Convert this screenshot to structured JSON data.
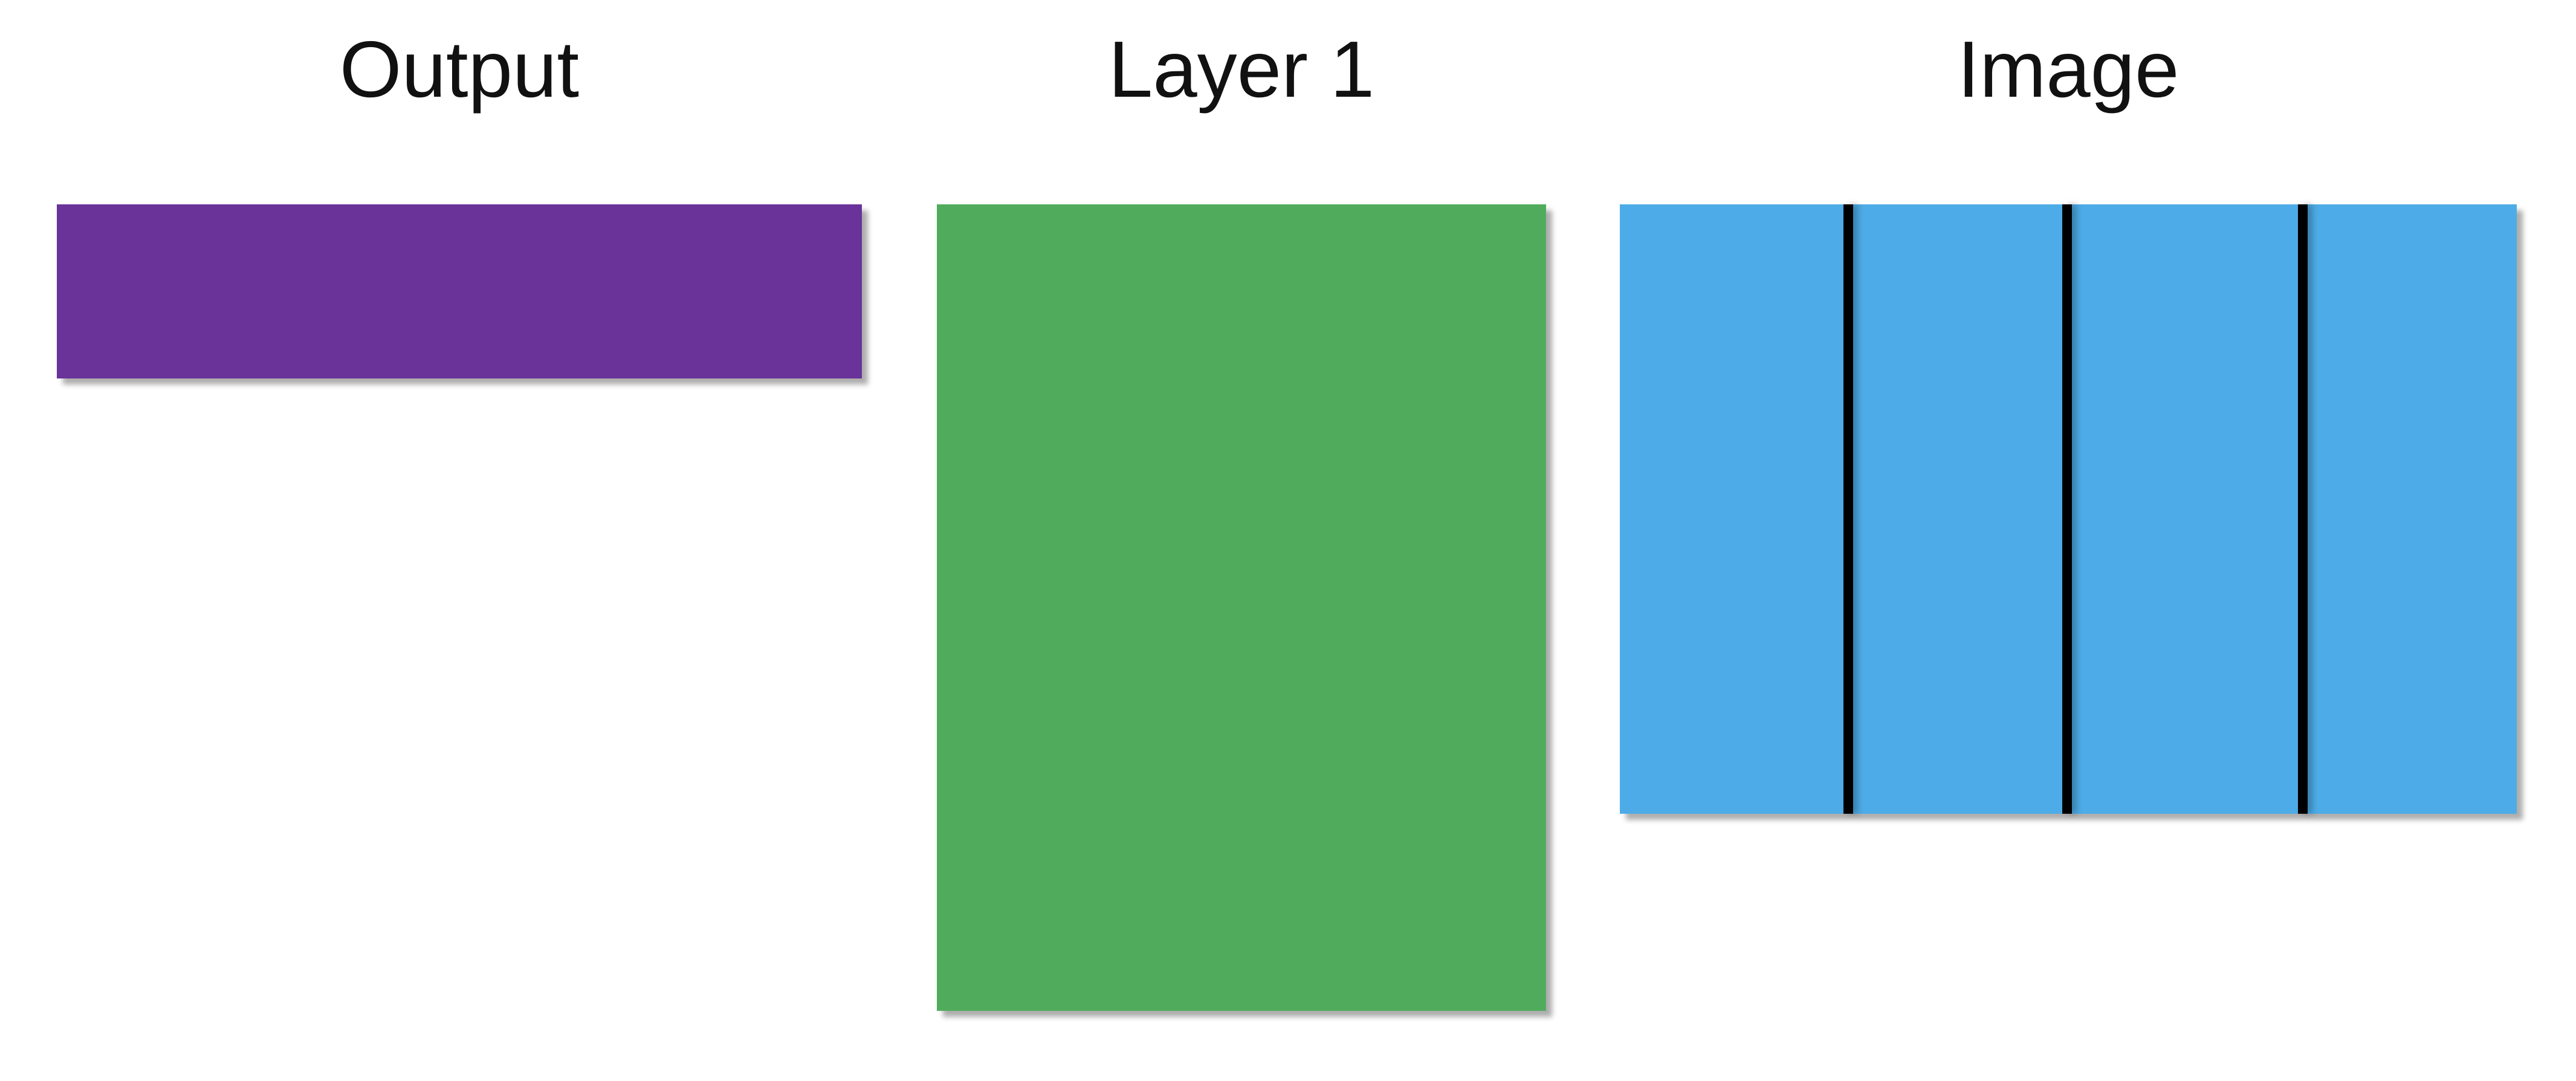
{
  "titles": {
    "output": "Output",
    "layer1": "Layer 1",
    "image": "Image"
  },
  "colors": {
    "output_block": "#693399",
    "layer1_block": "#50AC5C",
    "image_block": "#4DACE7",
    "divider": "#000000",
    "background": "#ffffff"
  },
  "image_block": {
    "segment_count": 4
  }
}
